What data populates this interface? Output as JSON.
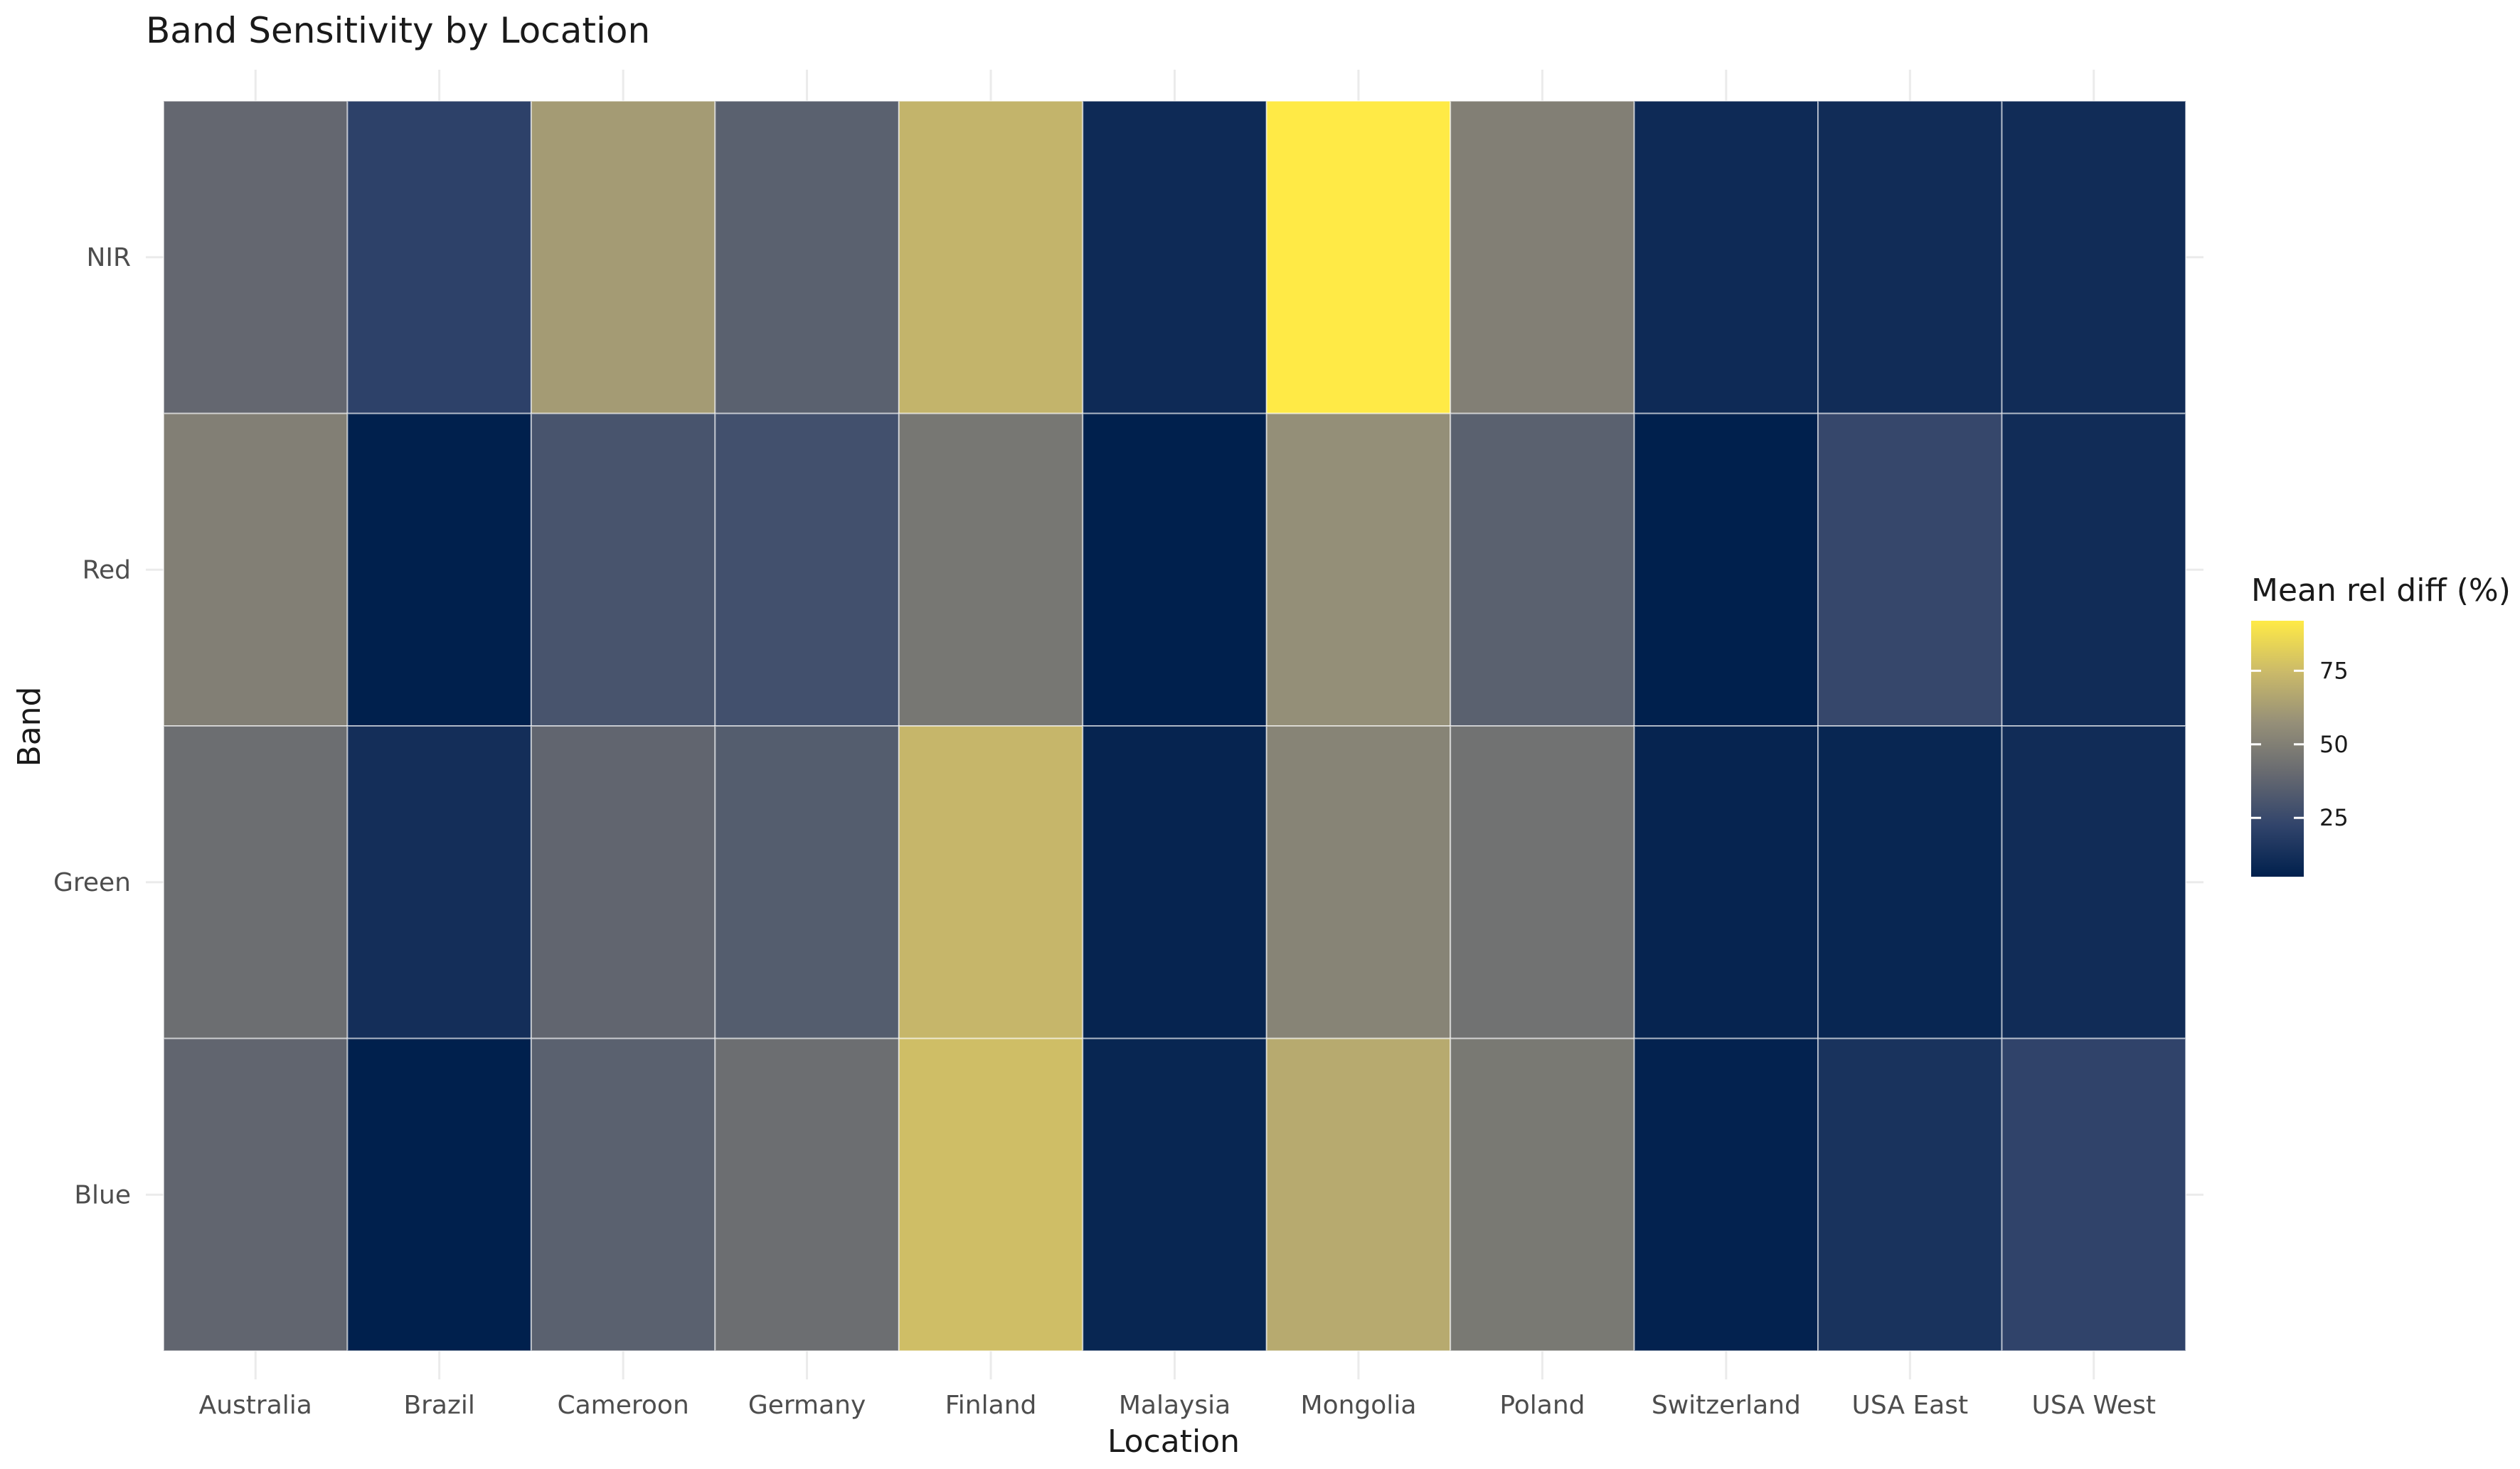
{
  "chart_data": {
    "type": "heatmap",
    "title": "Band Sensitivity by Location",
    "xlabel": "Location",
    "ylabel": "Band",
    "x_categories": [
      "Australia",
      "Brazil",
      "Cameroon",
      "Germany",
      "Finland",
      "Malaysia",
      "Mongolia",
      "Poland",
      "Switzerland",
      "USA East",
      "USA West"
    ],
    "y_categories": [
      "NIR",
      "Red",
      "Green",
      "Blue"
    ],
    "values": [
      [
        39,
        21,
        62,
        36,
        72,
        10,
        92,
        50,
        10,
        11,
        11
      ],
      [
        50,
        5,
        30,
        28,
        46,
        5,
        57,
        36,
        5,
        24,
        11
      ],
      [
        42,
        12,
        38,
        34,
        73,
        7,
        52,
        44,
        7,
        8,
        11
      ],
      [
        38,
        5,
        36,
        42,
        76,
        8,
        68,
        47,
        6,
        14,
        22
      ]
    ],
    "legend": {
      "title": "Mean rel diff (%)",
      "ticks": [
        25,
        50,
        75
      ],
      "min": 5,
      "max": 92,
      "position": "right"
    },
    "colorscale": [
      "#00204D",
      "#31446B",
      "#666970",
      "#958F78",
      "#CBBA69",
      "#FFEA46"
    ],
    "grid": true
  }
}
